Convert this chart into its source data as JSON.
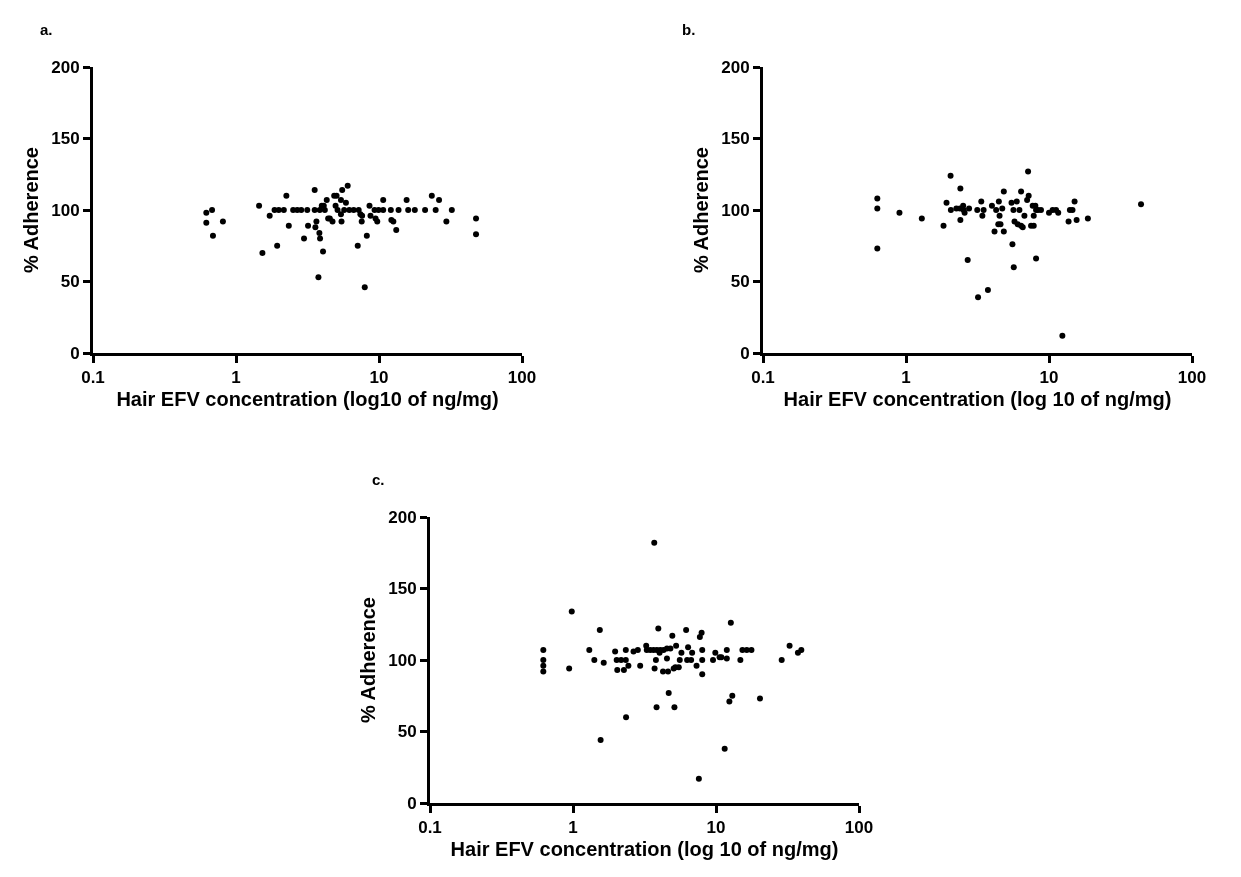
{
  "chart_data": [
    {
      "type": "scatter",
      "title": "a.",
      "xlabel": "Hair EFV concentration (log10 of ng/mg)",
      "ylabel": "% Adherence",
      "log": "x",
      "marker": "circle",
      "color": "#000000",
      "xlim": [
        0.1,
        100
      ],
      "xticks": [
        0.1,
        1,
        10,
        100
      ],
      "ylim": [
        0,
        200
      ],
      "yticks": [
        0,
        50,
        100,
        150,
        200
      ],
      "x": [
        0.62,
        0.68,
        0.62,
        0.81,
        0.69,
        1.45,
        1.72,
        1.53,
        1.94,
        2.25,
        2.34,
        1.86,
        1.99,
        2.16,
        2.51,
        2.68,
        2.86,
        3.15,
        2.99,
        3.19,
        3.55,
        3.55,
        3.65,
        3.59,
        3.83,
        3.87,
        4.06,
        3.77,
        3.85,
        3.98,
        4.11,
        4.18,
        4.31,
        4.41,
        4.53,
        4.73,
        4.86,
        5.05,
        4.97,
        5.13,
        5.53,
        5.42,
        5.87,
        6.04,
        5.42,
        5.47,
        5.71,
        6.2,
        6.65,
        7.21,
        7.41,
        7.62,
        7.57,
        7.1,
        7.95,
        8.22,
        8.58,
        8.72,
        9.46,
        9.72,
        9.31,
        9.93,
        10.7,
        10.7,
        12.1,
        12.2,
        12.6,
        13.2,
        13.7,
        15.6,
        16,
        17.8,
        21,
        23.4,
        24.9,
        26.3,
        29.6,
        32.3,
        47.7,
        47.7
      ],
      "values": [
        98,
        100,
        91,
        92,
        82,
        103,
        96,
        70,
        75,
        110,
        89,
        100,
        100,
        100,
        100,
        100,
        100,
        100,
        80,
        89,
        114,
        100,
        92,
        88,
        84,
        80,
        71,
        53,
        100,
        103,
        103,
        100,
        107,
        94,
        94,
        92,
        110,
        110,
        103,
        100,
        114,
        107,
        105,
        117,
        97,
        92,
        100,
        100,
        100,
        100,
        97,
        96,
        92,
        75,
        46,
        82,
        103,
        96,
        94,
        92,
        100,
        100,
        107,
        100,
        100,
        93,
        92,
        86,
        100,
        107,
        100,
        100,
        100,
        110,
        100,
        107,
        92,
        100,
        94,
        83
      ]
    },
    {
      "type": "scatter",
      "title": "b.",
      "xlabel": "Hair EFV concentration (log 10 of ng/mg)",
      "ylabel": "% Adherence",
      "log": "x",
      "marker": "circle",
      "color": "#000000",
      "xlim": [
        0.1,
        100
      ],
      "xticks": [
        0.1,
        1,
        10,
        100
      ],
      "ylim": [
        0,
        200
      ],
      "yticks": [
        0,
        50,
        100,
        150,
        200
      ],
      "x": [
        0.63,
        0.63,
        0.63,
        0.9,
        1.29,
        1.83,
        1.92,
        2.05,
        2.06,
        2.25,
        2.38,
        2.4,
        2.4,
        2.51,
        2.53,
        2.57,
        2.76,
        2.7,
        3.15,
        3.19,
        3.36,
        3.42,
        3.49,
        3.74,
        3.99,
        4.27,
        4.46,
        4.51,
        4.42,
        4.58,
        4.71,
        4.16,
        4.83,
        4.83,
        5.47,
        5.64,
        5.95,
        5.55,
        5.67,
        5.74,
        6.04,
        6.21,
        6.38,
        6.38,
        6.55,
        6.73,
        7.03,
        7.14,
        7.21,
        7.49,
        7.82,
        7.69,
        8.03,
        7.82,
        8.12,
        8.38,
        8.79,
        8.12,
        10,
        10.6,
        11.2,
        11.6,
        12.4,
        13.7,
        14,
        14.6,
        15.1,
        15.6,
        18.7,
        44
      ],
      "values": [
        108,
        101,
        73,
        98,
        94,
        89,
        105,
        124,
        100,
        101,
        101,
        115,
        93,
        103,
        100,
        98,
        101,
        65,
        100,
        39,
        106,
        96,
        100,
        44,
        103,
        100,
        106,
        96,
        90,
        90,
        101,
        85,
        85,
        113,
        105,
        100,
        106,
        76,
        60,
        92,
        90,
        100,
        113,
        89,
        88,
        96,
        107,
        127,
        110,
        89,
        89,
        103,
        103,
        96,
        100,
        100,
        100,
        66,
        98,
        100,
        100,
        98,
        12,
        92,
        100,
        100,
        106,
        93,
        94,
        104
      ]
    },
    {
      "type": "scatter",
      "title": "c.",
      "xlabel": "Hair EFV concentration (log 10 of ng/mg)",
      "ylabel": "% Adherence",
      "log": "x",
      "marker": "circle",
      "color": "#000000",
      "xlim": [
        0.1,
        100
      ],
      "xticks": [
        0.1,
        1,
        10,
        100
      ],
      "ylim": [
        0,
        200
      ],
      "yticks": [
        0,
        50,
        100,
        150,
        200
      ],
      "x": [
        0.62,
        0.62,
        0.62,
        0.62,
        0.94,
        0.98,
        1.54,
        1.3,
        1.41,
        1.64,
        1.56,
        1.97,
        2.02,
        2.17,
        2.04,
        2.27,
        2.34,
        2.34,
        2.44,
        2.35,
        2.65,
        2.84,
        2.95,
        3.25,
        3.28,
        3.47,
        3.66,
        3.86,
        4.08,
        4.3,
        4.54,
        4.8,
        3.95,
        3.7,
        4.03,
        3.8,
        3.72,
        4.26,
        4.62,
        4.54,
        4.67,
        3.84,
        5.12,
        4.95,
        5.26,
        5.2,
        5.06,
        5.49,
        5.58,
        5.73,
        6.18,
        6.38,
        6.28,
        6.7,
        6.81,
        7.31,
        7.71,
        7.93,
        8.01,
        8.01,
        8.01,
        7.59,
        9.53,
        9.89,
        10.6,
        10.9,
        11.9,
        11.9,
        12.7,
        13,
        12.4,
        11.5,
        14.8,
        15.3,
        16.4,
        17.7,
        20.3,
        28.8,
        32.7,
        37.4,
        39.5
      ],
      "values": [
        107,
        100,
        96,
        92,
        94,
        134,
        121,
        107,
        100,
        98,
        44,
        106,
        100,
        100,
        93,
        93,
        107,
        100,
        96,
        60,
        106,
        107,
        96,
        110,
        107,
        107,
        107,
        107,
        107,
        107,
        108,
        108,
        122,
        182,
        105,
        100,
        94,
        92,
        92,
        101,
        77,
        67,
        67,
        117,
        110,
        95,
        94,
        95,
        100,
        105,
        121,
        109,
        100,
        100,
        105,
        96,
        116,
        119,
        107,
        100,
        90,
        17,
        100,
        105,
        102,
        102,
        107,
        101,
        126,
        75,
        71,
        38,
        100,
        107,
        107,
        107,
        73,
        100,
        110,
        105,
        107
      ]
    }
  ]
}
